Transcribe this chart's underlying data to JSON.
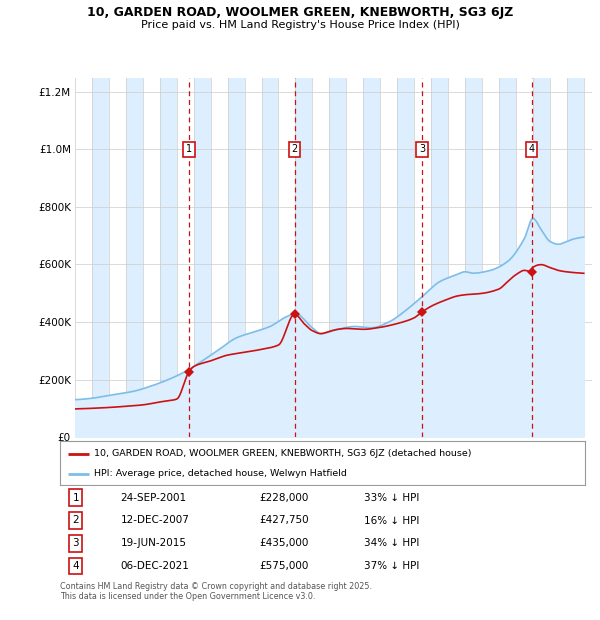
{
  "title_line1": "10, GARDEN ROAD, WOOLMER GREEN, KNEBWORTH, SG3 6JZ",
  "title_line2": "Price paid vs. HM Land Registry's House Price Index (HPI)",
  "legend_label_red": "10, GARDEN ROAD, WOOLMER GREEN, KNEBWORTH, SG3 6JZ (detached house)",
  "legend_label_blue": "HPI: Average price, detached house, Welwyn Hatfield",
  "footnote": "Contains HM Land Registry data © Crown copyright and database right 2025.\nThis data is licensed under the Open Government Licence v3.0.",
  "transactions": [
    {
      "num": 1,
      "date": "24-SEP-2001",
      "price": "£228,000",
      "pct": "33% ↓ HPI",
      "year": 2001.73,
      "value": 228000
    },
    {
      "num": 2,
      "date": "12-DEC-2007",
      "price": "£427,750",
      "pct": "16% ↓ HPI",
      "year": 2007.95,
      "value": 427750
    },
    {
      "num": 3,
      "date": "19-JUN-2015",
      "price": "£435,000",
      "pct": "34% ↓ HPI",
      "year": 2015.46,
      "value": 435000
    },
    {
      "num": 4,
      "date": "06-DEC-2021",
      "price": "£575,000",
      "pct": "37% ↓ HPI",
      "year": 2021.93,
      "value": 575000
    }
  ],
  "hpi_color": "#7dbde8",
  "price_color": "#cc1111",
  "shade_color": "#ddeeff",
  "plot_bg_color": "#ffffff",
  "grid_color": "#cccccc",
  "ylim": [
    0,
    1250000
  ],
  "xlim_start": 1995.0,
  "xlim_end": 2025.5,
  "table_rows": [
    [
      1,
      "24-SEP-2001",
      "£228,000",
      "33% ↓ HPI"
    ],
    [
      2,
      "12-DEC-2007",
      "£427,750",
      "16% ↓ HPI"
    ],
    [
      3,
      "19-JUN-2015",
      "£435,000",
      "34% ↓ HPI"
    ],
    [
      4,
      "06-DEC-2021",
      "£575,000",
      "37% ↓ HPI"
    ]
  ]
}
